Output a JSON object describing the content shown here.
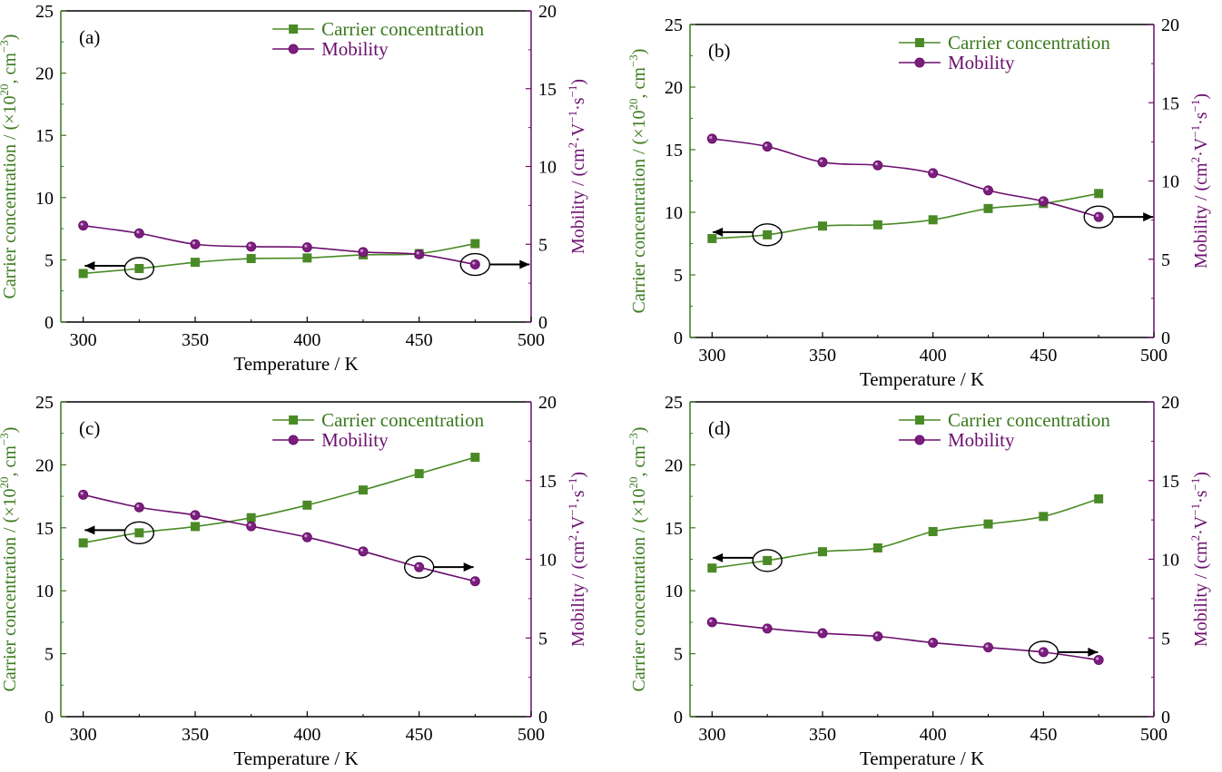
{
  "colors": {
    "carrier": "#4a8a26",
    "carrier_axis": "#3b7a1e",
    "mobility": "#6b0f6e",
    "mobility_fill": "#7b1f7d"
  },
  "chart_data": [
    {
      "type": "line",
      "panel_label": "(a)",
      "xlabel": "Temperature / K",
      "ylabel_left": "Carrier concentration / (×10²⁰, cm⁻³)",
      "ylabel_right": "Mobility / (cm²·V⁻¹·s⁻¹)",
      "xlim": [
        290,
        500
      ],
      "ylim_left": [
        0,
        25
      ],
      "ylim_right": [
        0,
        20
      ],
      "xticks": [
        300,
        350,
        400,
        450,
        500
      ],
      "yticks_left": [
        0,
        5,
        10,
        15,
        20,
        25
      ],
      "yticks_right": [
        0,
        5,
        10,
        15,
        20
      ],
      "x": [
        300,
        325,
        350,
        375,
        400,
        425,
        450,
        475
      ],
      "series": [
        {
          "name": "Carrier concentration",
          "axis": "left",
          "marker": "square",
          "values": [
            3.9,
            4.3,
            4.8,
            5.1,
            5.15,
            5.4,
            5.5,
            6.3
          ]
        },
        {
          "name": "Mobility",
          "axis": "right",
          "marker": "circle",
          "values": [
            6.2,
            5.7,
            5.0,
            4.85,
            4.8,
            4.5,
            4.35,
            3.7
          ]
        }
      ],
      "annotations": [
        {
          "x": 325,
          "y": 4.3,
          "axis": "left",
          "direction": "left"
        },
        {
          "x": 475,
          "y": 3.7,
          "axis": "right",
          "direction": "right"
        }
      ],
      "legend": "top-right"
    },
    {
      "type": "line",
      "panel_label": "(b)",
      "xlabel": "Temperature / K",
      "ylabel_left": "Carrier concentration / (×10²⁰, cm⁻³)",
      "ylabel_right": "Mobility / (cm²·V⁻¹·s⁻¹)",
      "xlim": [
        290,
        500
      ],
      "ylim_left": [
        0,
        25
      ],
      "ylim_right": [
        0,
        20
      ],
      "xticks": [
        300,
        350,
        400,
        450,
        500
      ],
      "yticks_left": [
        0,
        5,
        10,
        15,
        20,
        25
      ],
      "yticks_right": [
        0,
        5,
        10,
        15,
        20
      ],
      "x": [
        300,
        325,
        350,
        375,
        400,
        425,
        450,
        475
      ],
      "series": [
        {
          "name": "Carrier concentration",
          "axis": "left",
          "marker": "square",
          "values": [
            7.9,
            8.2,
            8.9,
            9.0,
            9.4,
            10.3,
            10.7,
            11.5
          ]
        },
        {
          "name": "Mobility",
          "axis": "right",
          "marker": "circle",
          "values": [
            12.7,
            12.2,
            11.2,
            11.0,
            10.5,
            9.4,
            8.7,
            7.7
          ]
        }
      ],
      "annotations": [
        {
          "x": 325,
          "y": 8.2,
          "axis": "left",
          "direction": "left"
        },
        {
          "x": 475,
          "y": 7.7,
          "axis": "right",
          "direction": "right"
        }
      ],
      "legend": "top-right"
    },
    {
      "type": "line",
      "panel_label": "(c)",
      "xlabel": "Temperature / K",
      "ylabel_left": "Carrier concentration / (×10²⁰, cm⁻³)",
      "ylabel_right": "Mobility / (cm²·V⁻¹·s⁻¹)",
      "xlim": [
        290,
        500
      ],
      "ylim_left": [
        0,
        25
      ],
      "ylim_right": [
        0,
        20
      ],
      "xticks": [
        300,
        350,
        400,
        450,
        500
      ],
      "yticks_left": [
        0,
        5,
        10,
        15,
        20,
        25
      ],
      "yticks_right": [
        0,
        5,
        10,
        15,
        20
      ],
      "x": [
        300,
        325,
        350,
        375,
        400,
        425,
        450,
        475
      ],
      "series": [
        {
          "name": "Carrier concentration",
          "axis": "left",
          "marker": "square",
          "values": [
            13.8,
            14.6,
            15.1,
            15.8,
            16.8,
            18.0,
            19.3,
            20.6
          ]
        },
        {
          "name": "Mobility",
          "axis": "right",
          "marker": "circle",
          "values": [
            14.1,
            13.3,
            12.8,
            12.1,
            11.4,
            10.5,
            9.5,
            8.6
          ]
        }
      ],
      "annotations": [
        {
          "x": 325,
          "y": 14.6,
          "axis": "left",
          "direction": "left"
        },
        {
          "x": 450,
          "y": 9.5,
          "axis": "right",
          "direction": "right"
        }
      ],
      "legend": "top-right"
    },
    {
      "type": "line",
      "panel_label": "(d)",
      "xlabel": "Temperature / K",
      "ylabel_left": "Carrier concentration / (×10²⁰, cm⁻³)",
      "ylabel_right": "Mobility / (cm²·V⁻¹·s⁻¹)",
      "xlim": [
        290,
        500
      ],
      "ylim_left": [
        0,
        25
      ],
      "ylim_right": [
        0,
        20
      ],
      "xticks": [
        300,
        350,
        400,
        450,
        500
      ],
      "yticks_left": [
        0,
        5,
        10,
        15,
        20,
        25
      ],
      "yticks_right": [
        0,
        5,
        10,
        15,
        20
      ],
      "x": [
        300,
        325,
        350,
        375,
        400,
        425,
        450,
        475
      ],
      "series": [
        {
          "name": "Carrier concentration",
          "axis": "left",
          "marker": "square",
          "values": [
            11.8,
            12.4,
            13.1,
            13.4,
            14.7,
            15.3,
            15.9,
            17.3
          ]
        },
        {
          "name": "Mobility",
          "axis": "right",
          "marker": "circle",
          "values": [
            6.0,
            5.6,
            5.3,
            5.1,
            4.7,
            4.4,
            4.1,
            3.6
          ]
        }
      ],
      "annotations": [
        {
          "x": 325,
          "y": 12.4,
          "axis": "left",
          "direction": "left"
        },
        {
          "x": 450,
          "y": 4.1,
          "axis": "right",
          "direction": "right"
        }
      ],
      "legend": "top-right"
    }
  ]
}
